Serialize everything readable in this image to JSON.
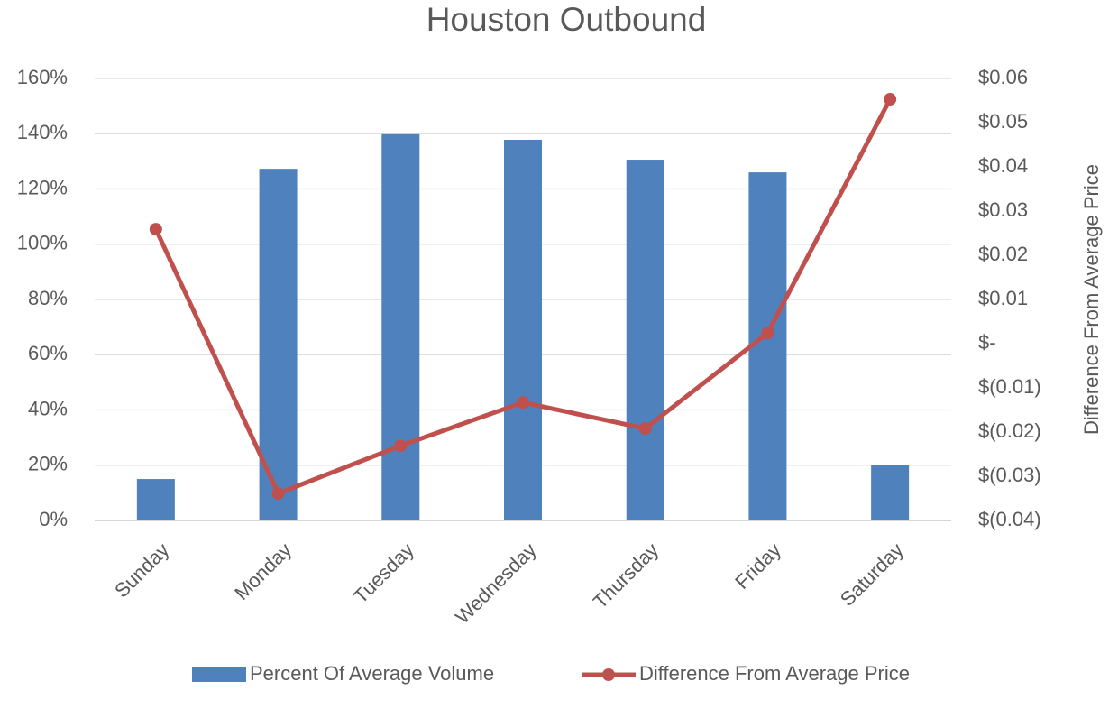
{
  "chart_data": {
    "type": "bar-line",
    "title": "Houston Outbound",
    "categories": [
      "Sunday",
      "Monday",
      "Tuesday",
      "Wednesday",
      "Thursday",
      "Friday",
      "Saturday"
    ],
    "series": [
      {
        "name": "Percent Of Average Volume",
        "type": "bar",
        "color": "#4f81bd",
        "values": [
          15,
          127.3,
          139.8,
          137.8,
          130.6,
          126,
          20.2
        ]
      },
      {
        "name": "Difference From Average Price",
        "type": "line",
        "axis": "y2",
        "color": "#c0504d",
        "values": [
          0.0259,
          -0.0339,
          -0.0231,
          -0.0133,
          -0.0192,
          0.0024,
          0.0553
        ]
      }
    ],
    "ylim": [
      0,
      160
    ],
    "yticks": [
      {
        "value": 0,
        "label": "0%"
      },
      {
        "value": 20,
        "label": "20%"
      },
      {
        "value": 40,
        "label": "40%"
      },
      {
        "value": 60,
        "label": "60%"
      },
      {
        "value": 80,
        "label": "80%"
      },
      {
        "value": 100,
        "label": "100%"
      },
      {
        "value": 120,
        "label": "120%"
      },
      {
        "value": 140,
        "label": "140%"
      },
      {
        "value": 160,
        "label": "160%"
      }
    ],
    "y2lim": [
      -0.04,
      0.06
    ],
    "y2ticks": [
      {
        "value": -0.04,
        "label": "$(0.04)"
      },
      {
        "value": -0.03,
        "label": "$(0.03)"
      },
      {
        "value": -0.02,
        "label": "$(0.02)"
      },
      {
        "value": -0.01,
        "label": "$(0.01)"
      },
      {
        "value": 0,
        "label": "$-"
      },
      {
        "value": 0.01,
        "label": "$0.01"
      },
      {
        "value": 0.02,
        "label": "$0.02"
      },
      {
        "value": 0.03,
        "label": "$0.03"
      },
      {
        "value": 0.04,
        "label": "$0.04"
      },
      {
        "value": 0.05,
        "label": "$0.05"
      },
      {
        "value": 0.06,
        "label": "$0.06"
      }
    ],
    "y2label": "Difference From Average Price",
    "grid": true
  }
}
